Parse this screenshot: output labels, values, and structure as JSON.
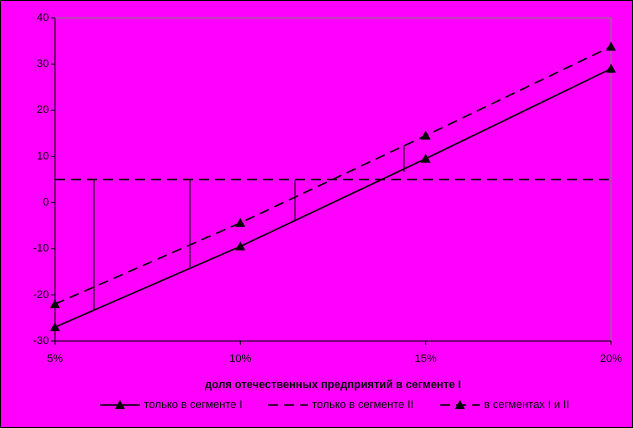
{
  "chart_data": {
    "type": "line",
    "x_label": "доля отечественных предприятий в сегменте I",
    "x": [
      5,
      10,
      15,
      20
    ],
    "xlim": [
      5,
      20
    ],
    "xticks": [
      {
        "value": 5,
        "label": "5%"
      },
      {
        "value": 10,
        "label": "10%"
      },
      {
        "value": 15,
        "label": "15%"
      },
      {
        "value": 20,
        "label": "20%"
      }
    ],
    "ylim": [
      -30,
      40
    ],
    "yticks": [
      -30,
      -20,
      -10,
      0,
      10,
      20,
      30,
      40
    ],
    "series": [
      {
        "name": "только в сегменте I",
        "color": "#000000",
        "dash": "none",
        "marker": "triangle",
        "values": [
          -27,
          -9.5,
          9.5,
          29
        ]
      },
      {
        "name": "только в сегменте II",
        "color": "#000000",
        "dash": "10,6",
        "marker": "none",
        "values": [
          5,
          5,
          5,
          5
        ]
      },
      {
        "name": "в сегментах I и II",
        "color": "#000000",
        "dash": "10,6",
        "marker": "triangle",
        "values": [
          -22,
          -4.4,
          14.5,
          33.8
        ]
      }
    ]
  }
}
